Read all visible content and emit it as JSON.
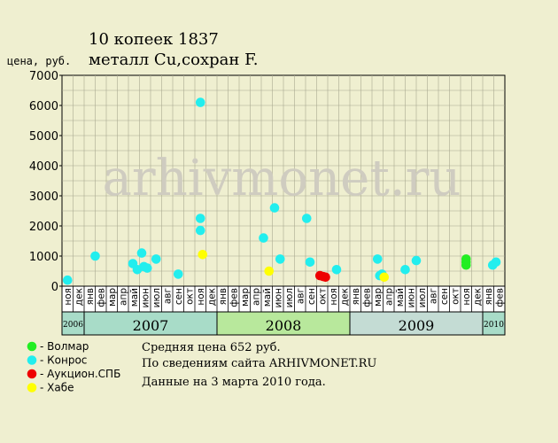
{
  "chart_data": {
    "type": "scatter",
    "title": [
      "10 копеек 1837",
      "металл Cu,сохран F."
    ],
    "ylabel": "цена, руб.",
    "xlabel": "",
    "ylim": [
      0,
      7000
    ],
    "yticks": [
      "0",
      "1000",
      "2000",
      "3000",
      "4000",
      "5000",
      "6000",
      "7000"
    ],
    "grid": true,
    "months": [
      "ноя",
      "дек",
      "янв",
      "фев",
      "мар",
      "апр",
      "май",
      "июн",
      "июл",
      "авг",
      "сен",
      "окт",
      "ноя",
      "дек",
      "янв",
      "фев",
      "мар",
      "апр",
      "май",
      "июн",
      "июл",
      "авг",
      "сен",
      "окт",
      "ноя",
      "дек",
      "янв",
      "фев",
      "мар",
      "апр",
      "май",
      "июн",
      "июл",
      "авг",
      "сен",
      "окт",
      "ноя",
      "дек",
      "янв",
      "фев"
    ],
    "years": [
      {
        "label": "2006",
        "start": 0,
        "end": 1,
        "color": "#a8dcc8",
        "small": true
      },
      {
        "label": "2007",
        "start": 2,
        "end": 13,
        "color": "#a8dcc8",
        "small": false
      },
      {
        "label": "2008",
        "start": 14,
        "end": 25,
        "color": "#b8e89c",
        "small": false
      },
      {
        "label": "2009",
        "start": 26,
        "end": 37,
        "color": "#c4dcd4",
        "small": false
      },
      {
        "label": "2010",
        "start": 38,
        "end": 39,
        "color": "#a8dcc8",
        "small": true
      }
    ],
    "watermark": "arhivmonet.ru",
    "series": [
      {
        "name": "Волмар",
        "color": "#22ee22",
        "points": [
          [
            36.0,
            900
          ],
          [
            36.0,
            800
          ],
          [
            36.0,
            700
          ]
        ]
      },
      {
        "name": "Конрос",
        "color": "#22eeee",
        "points": [
          [
            0.0,
            200
          ],
          [
            2.5,
            1000
          ],
          [
            5.9,
            750
          ],
          [
            6.3,
            550
          ],
          [
            6.7,
            1100
          ],
          [
            6.9,
            650
          ],
          [
            7.2,
            600
          ],
          [
            8.0,
            900
          ],
          [
            10.0,
            400
          ],
          [
            12.0,
            6100
          ],
          [
            12.0,
            2250
          ],
          [
            12.0,
            1850
          ],
          [
            17.7,
            1600
          ],
          [
            18.7,
            2600
          ],
          [
            19.2,
            900
          ],
          [
            21.6,
            2250
          ],
          [
            21.9,
            800
          ],
          [
            24.3,
            550
          ],
          [
            28.0,
            900
          ],
          [
            28.2,
            350
          ],
          [
            28.4,
            400
          ],
          [
            30.5,
            550
          ],
          [
            31.5,
            850
          ],
          [
            38.4,
            700
          ],
          [
            38.7,
            800
          ]
        ]
      },
      {
        "name": "Аукцион.СПБ",
        "color": "#ee0000",
        "points": [
          [
            22.8,
            350
          ],
          [
            23.1,
            320
          ],
          [
            23.3,
            300
          ]
        ]
      },
      {
        "name": "Хабе",
        "color": "#ffff00",
        "points": [
          [
            12.2,
            1050
          ],
          [
            18.2,
            500
          ],
          [
            28.6,
            300
          ]
        ]
      }
    ]
  },
  "info": {
    "avg": "Средняя цена 652 руб.",
    "source": "По сведениям сайта ARHIVMONET.RU",
    "date": "Данные на 3 марта 2010 года."
  }
}
